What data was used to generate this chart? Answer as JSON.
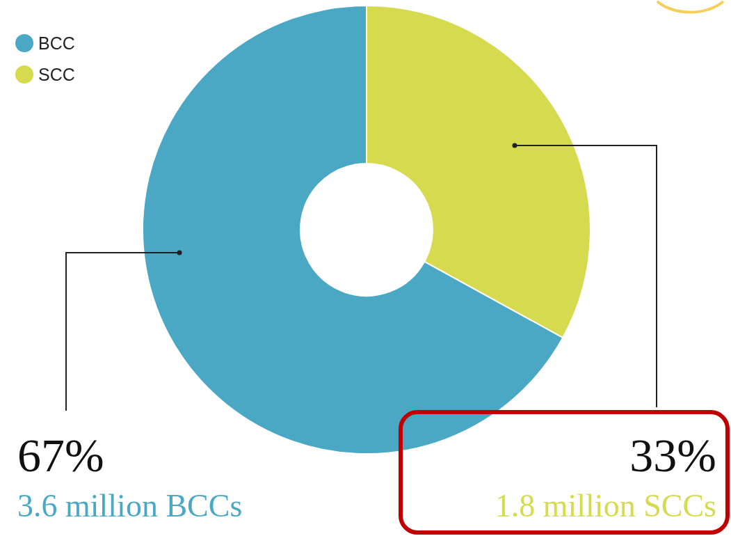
{
  "chart_data": {
    "type": "donut",
    "categories": [
      "BCC",
      "SCC"
    ],
    "values": [
      67,
      33
    ],
    "colors": [
      "#4aa8c4",
      "#d5da4e"
    ],
    "value_labels": [
      "67%",
      "33%"
    ],
    "annotations": [
      "3.6 million BCCs",
      "1.8 million SCCs"
    ],
    "legend": "top left"
  }
}
